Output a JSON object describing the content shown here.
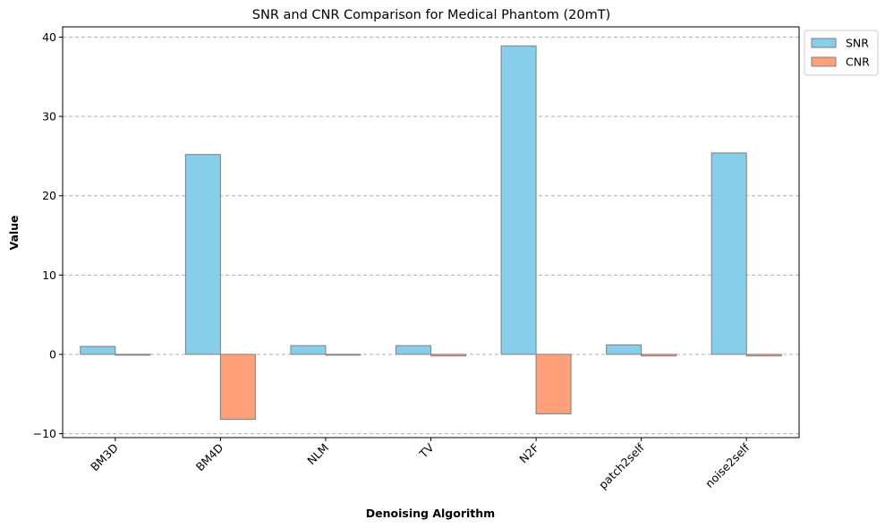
{
  "chart_data": {
    "type": "bar",
    "title": "SNR and CNR Comparison for Medical Phantom (20mT)",
    "xlabel": "Denoising Algorithm",
    "ylabel": "Value",
    "categories": [
      "BM3D",
      "BM4D",
      "NLM",
      "TV",
      "N2F",
      "patch2self",
      "noise2self"
    ],
    "series": [
      {
        "name": "SNR",
        "color": "#87ceeb",
        "values": [
          1.0,
          25.2,
          1.1,
          1.1,
          38.9,
          1.2,
          25.4
        ]
      },
      {
        "name": "CNR",
        "color": "#ffa07a",
        "values": [
          -0.1,
          -8.2,
          -0.1,
          -0.2,
          -7.5,
          -0.2,
          -0.2
        ]
      }
    ],
    "ylim": [
      -10.5,
      41.3
    ],
    "yticks": [
      -10,
      0,
      10,
      20,
      30,
      40
    ],
    "grid": "y-dashed",
    "legend": "upper-right-outside"
  }
}
